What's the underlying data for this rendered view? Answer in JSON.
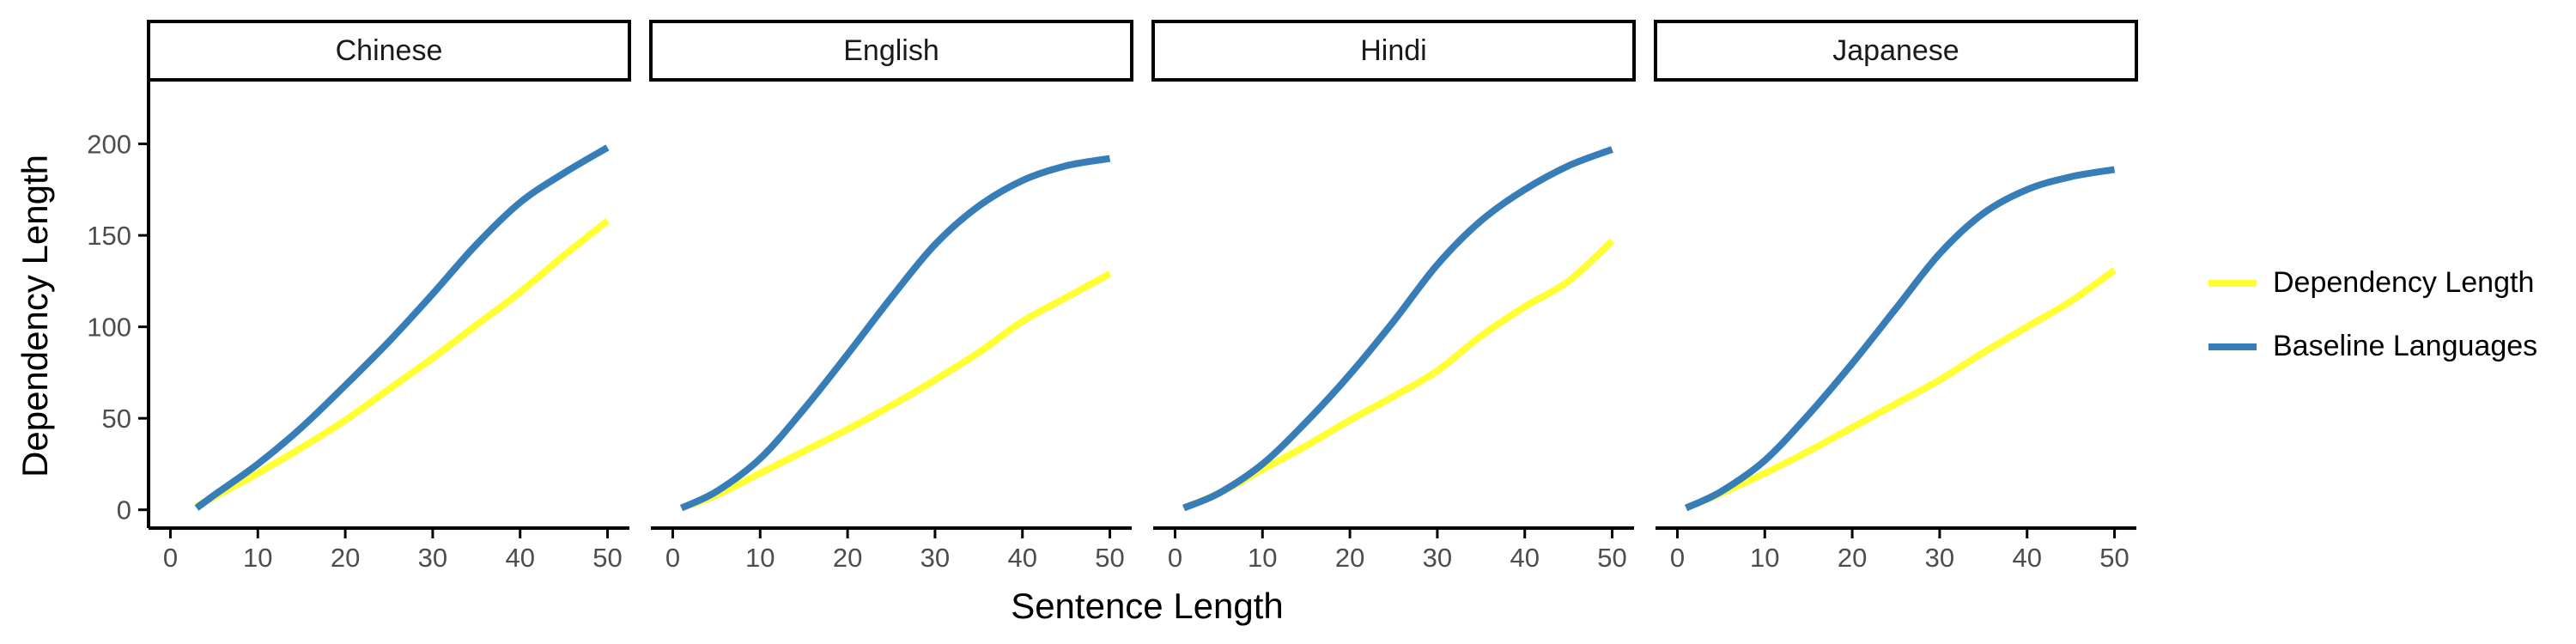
{
  "chart_data": {
    "type": "line",
    "facets": [
      "Chinese",
      "English",
      "Hindi",
      "Japanese"
    ],
    "xlabel": "Sentence Length",
    "ylabel": "Dependency Length",
    "xlim": [
      -2.5,
      52.5
    ],
    "ylim": [
      -10,
      235
    ],
    "xticks": [
      0,
      10,
      20,
      30,
      40,
      50
    ],
    "yticks": [
      0,
      50,
      100,
      150,
      200
    ],
    "grid": false,
    "legend_position": "right",
    "series": [
      {
        "name": "Dependency Length",
        "color": "#FFFF33",
        "panels": [
          {
            "facet": "Chinese",
            "x": [
              3,
              5,
              10,
              15,
              20,
              25,
              30,
              35,
              40,
              45,
              50
            ],
            "y": [
              2,
              7,
              20,
              34,
              49,
              66,
              83,
              101,
              119,
              139,
              158
            ]
          },
          {
            "facet": "English",
            "x": [
              1,
              5,
              10,
              15,
              20,
              25,
              30,
              35,
              40,
              45,
              50
            ],
            "y": [
              1,
              8,
              20,
              32,
              44,
              57,
              71,
              86,
              103,
              116,
              129
            ]
          },
          {
            "facet": "Hindi",
            "x": [
              1,
              5,
              10,
              15,
              20,
              25,
              30,
              35,
              40,
              45,
              50
            ],
            "y": [
              1,
              9,
              22,
              35,
              49,
              62,
              76,
              95,
              111,
              125,
              147
            ]
          },
          {
            "facet": "Japanese",
            "x": [
              1,
              5,
              10,
              15,
              20,
              25,
              30,
              35,
              40,
              45,
              50
            ],
            "y": [
              1,
              9,
              20,
              32,
              45,
              58,
              71,
              86,
              100,
              114,
              131
            ]
          }
        ]
      },
      {
        "name": "Baseline Languages",
        "color": "#377EB8",
        "panels": [
          {
            "facet": "Chinese",
            "x": [
              3,
              5,
              10,
              15,
              20,
              25,
              30,
              35,
              40,
              45,
              50
            ],
            "y": [
              1,
              8,
              25,
              45,
              68,
              92,
              118,
              145,
              168,
              184,
              198
            ]
          },
          {
            "facet": "English",
            "x": [
              1,
              5,
              10,
              15,
              20,
              25,
              30,
              35,
              40,
              45,
              50
            ],
            "y": [
              1,
              10,
              28,
              55,
              85,
              116,
              145,
              166,
              180,
              188,
              192
            ]
          },
          {
            "facet": "Hindi",
            "x": [
              1,
              5,
              10,
              15,
              20,
              25,
              30,
              35,
              40,
              45,
              50
            ],
            "y": [
              1,
              9,
              25,
              48,
              74,
              103,
              134,
              158,
              175,
              188,
              197
            ]
          },
          {
            "facet": "Japanese",
            "x": [
              1,
              5,
              10,
              15,
              20,
              25,
              30,
              35,
              40,
              45,
              50
            ],
            "y": [
              1,
              10,
              27,
              52,
              80,
              110,
              140,
              162,
              175,
              182,
              186
            ]
          }
        ]
      }
    ]
  }
}
